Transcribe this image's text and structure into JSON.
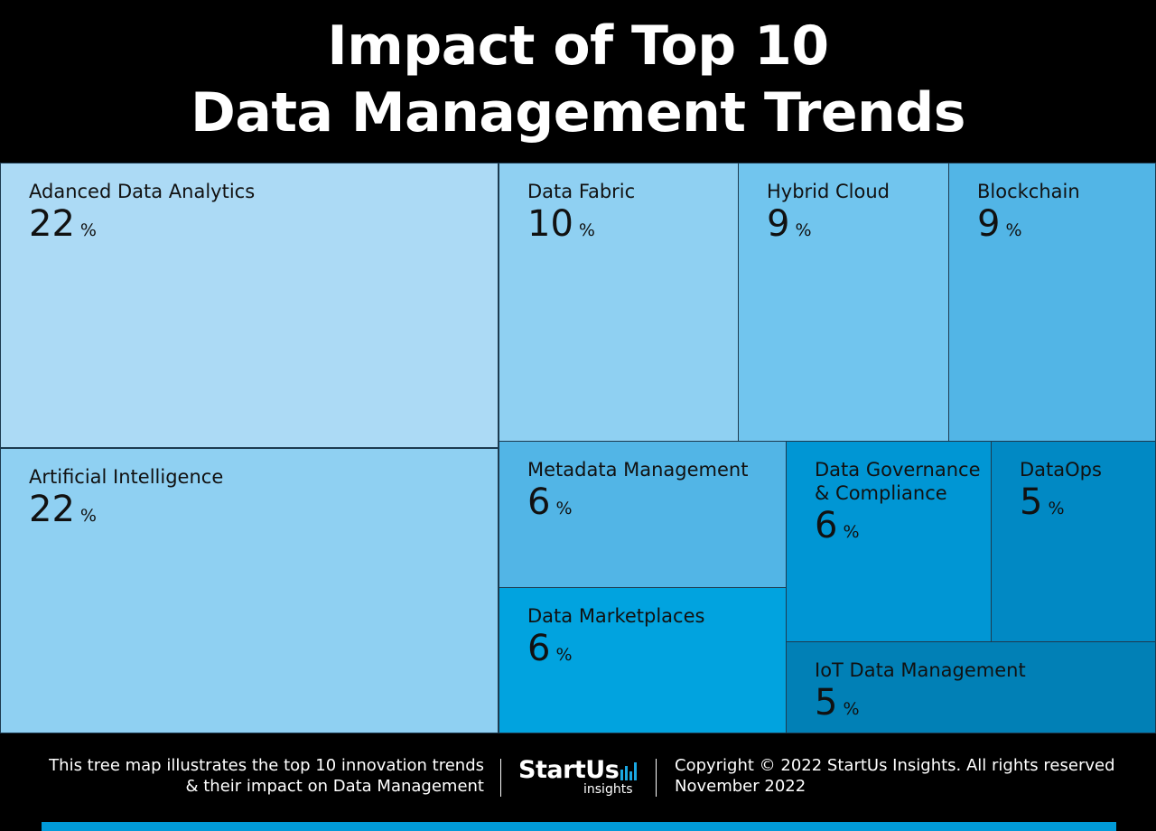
{
  "title": {
    "line1": "Impact of Top 10",
    "line2": "Data Management Trends"
  },
  "chart_data": {
    "type": "treemap",
    "title": "Impact of Top 10 Data Management Trends",
    "unit": "%",
    "items": [
      {
        "label": "Adanced Data Analytics",
        "value": 22,
        "color": "#acdaf5"
      },
      {
        "label": "Artificial Intelligence",
        "value": 22,
        "color": "#8fd0f2"
      },
      {
        "label": "Data Fabric",
        "value": 10,
        "color": "#8fd0f2"
      },
      {
        "label": "Hybrid Cloud",
        "value": 9,
        "color": "#71c5ee"
      },
      {
        "label": "Blockchain",
        "value": 9,
        "color": "#52b5e6"
      },
      {
        "label": "Metadata Management",
        "value": 6,
        "color": "#52b5e6"
      },
      {
        "label": "Data Marketplaces",
        "value": 6,
        "color": "#01a3df"
      },
      {
        "label": "Data Governance\n& Compliance",
        "value": 6,
        "color": "#0096d4"
      },
      {
        "label": "DataOps",
        "value": 5,
        "color": "#0189c4"
      },
      {
        "label": "IoT Data Management",
        "value": 5,
        "color": "#0180b6"
      }
    ]
  },
  "footer": {
    "description_line1": "This tree map illustrates the top 10 innovation trends",
    "description_line2": "& their impact on Data Management",
    "logo_brand": "StartUs",
    "logo_sub": "insights",
    "copyright": "Copyright © 2022 StartUs Insights. All rights reserved",
    "date": "November 2022"
  },
  "colors": {
    "background": "#000000",
    "accent": "#019ad8",
    "logo_bars": "#1aa7e2"
  }
}
